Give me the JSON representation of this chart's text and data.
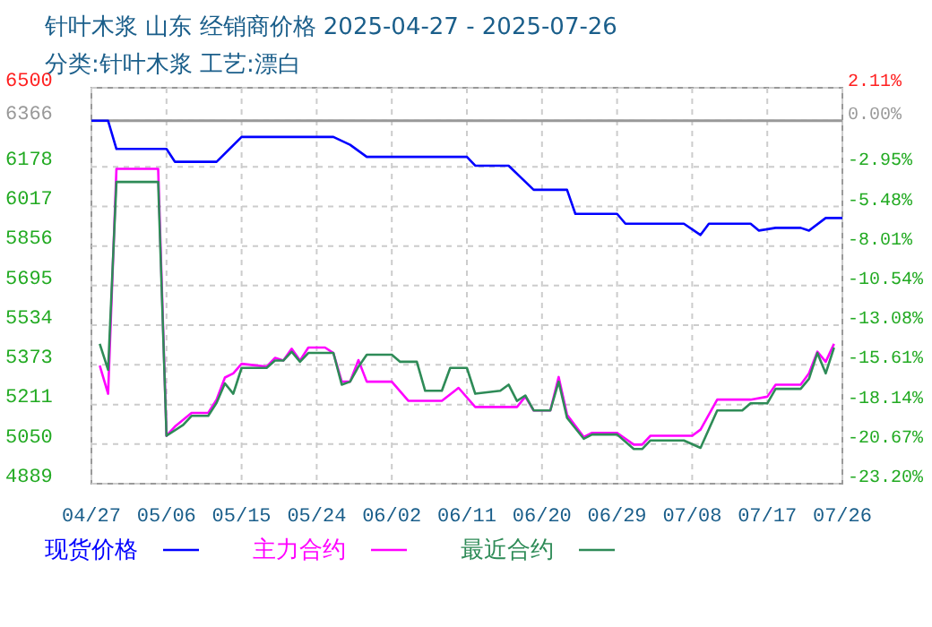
{
  "chart_data": {
    "type": "line",
    "title": "针叶木浆 山东 经销商价格 2025-04-27 - 2025-07-26",
    "subtitle": "分类:针叶木浆 工艺:漂白",
    "xlim": [
      "2025-04-27",
      "2025-07-26"
    ],
    "xticks": [
      {
        "value": "2025-04-27",
        "label": "04/27"
      },
      {
        "value": "2025-05-06",
        "label": "05/06"
      },
      {
        "value": "2025-05-15",
        "label": "05/15"
      },
      {
        "value": "2025-05-24",
        "label": "05/24"
      },
      {
        "value": "2025-06-02",
        "label": "06/02"
      },
      {
        "value": "2025-06-11",
        "label": "06/11"
      },
      {
        "value": "2025-06-20",
        "label": "06/20"
      },
      {
        "value": "2025-06-29",
        "label": "06/29"
      },
      {
        "value": "2025-07-08",
        "label": "07/08"
      },
      {
        "value": "2025-07-17",
        "label": "07/17"
      },
      {
        "value": "2025-07-26",
        "label": "07/26"
      }
    ],
    "ylim": [
      4889,
      6500
    ],
    "yticks": [
      4889,
      5050,
      5211,
      5373,
      5534,
      5695,
      5856,
      6017,
      6178,
      6366,
      6500
    ],
    "y2lim": [
      -23.2,
      2.11
    ],
    "y2ticks": [
      {
        "value": -23.2,
        "label": "-23.20%"
      },
      {
        "value": -20.67,
        "label": "-20.67%"
      },
      {
        "value": -18.14,
        "label": "-18.14%"
      },
      {
        "value": -15.61,
        "label": "-15.61%"
      },
      {
        "value": -13.08,
        "label": "-13.08%"
      },
      {
        "value": -10.54,
        "label": "-10.54%"
      },
      {
        "value": -8.01,
        "label": "-8.01%"
      },
      {
        "value": -5.48,
        "label": "-5.48%"
      },
      {
        "value": -2.95,
        "label": "-2.95%"
      },
      {
        "value": 0,
        "label": "0.00%"
      },
      {
        "value": 2.11,
        "label": "2.11%"
      }
    ],
    "ref_lines": [
      {
        "axis": "y",
        "value": 6366,
        "color": "#999999"
      }
    ],
    "grid": true,
    "legend": "bottom",
    "line_style": "solid",
    "marker": "none",
    "series": [
      {
        "name": "现货价格",
        "color": "#0000ff",
        "x": [
          "2025-04-27",
          "2025-04-29",
          "2025-04-30",
          "2025-05-06",
          "2025-05-07",
          "2025-05-12",
          "2025-05-15",
          "2025-05-26",
          "2025-05-28",
          "2025-05-30",
          "2025-06-11",
          "2025-06-12",
          "2025-06-16",
          "2025-06-19",
          "2025-06-23",
          "2025-06-24",
          "2025-06-29",
          "2025-06-30",
          "2025-07-07",
          "2025-07-09",
          "2025-07-10",
          "2025-07-15",
          "2025-07-16",
          "2025-07-18",
          "2025-07-21",
          "2025-07-22",
          "2025-07-24",
          "2025-07-26"
        ],
        "values": [
          6366,
          6366,
          6251,
          6251,
          6199,
          6199,
          6300,
          6300,
          6268,
          6219,
          6219,
          6183,
          6183,
          6085,
          6085,
          5987,
          5987,
          5947,
          5947,
          5901,
          5947,
          5947,
          5919,
          5930,
          5930,
          5919,
          5970,
          5970
        ]
      },
      {
        "name": "主力合约",
        "color": "#ff00ff",
        "x": [
          "2025-04-28",
          "2025-04-29",
          "2025-04-30",
          "2025-05-05",
          "2025-05-06",
          "2025-05-07",
          "2025-05-09",
          "2025-05-11",
          "2025-05-12",
          "2025-05-13",
          "2025-05-14",
          "2025-05-15",
          "2025-05-18",
          "2025-05-19",
          "2025-05-20",
          "2025-05-21",
          "2025-05-22",
          "2025-05-23",
          "2025-05-25",
          "2025-05-26",
          "2025-05-27",
          "2025-05-28",
          "2025-05-29",
          "2025-05-30",
          "2025-06-02",
          "2025-06-04",
          "2025-06-08",
          "2025-06-10",
          "2025-06-12",
          "2025-06-17",
          "2025-06-18",
          "2025-06-19",
          "2025-06-21",
          "2025-06-22",
          "2025-06-23",
          "2025-06-25",
          "2025-06-26",
          "2025-06-29",
          "2025-07-01",
          "2025-07-02",
          "2025-07-03",
          "2025-07-08",
          "2025-07-09",
          "2025-07-11",
          "2025-07-15",
          "2025-07-17",
          "2025-07-18",
          "2025-07-21",
          "2025-07-22",
          "2025-07-23",
          "2025-07-24",
          "2025-07-25"
        ],
        "values": [
          5370,
          5255,
          6170,
          6170,
          5084,
          5121,
          5177,
          5177,
          5231,
          5321,
          5338,
          5377,
          5365,
          5401,
          5390,
          5438,
          5390,
          5443,
          5443,
          5421,
          5304,
          5304,
          5392,
          5304,
          5304,
          5226,
          5226,
          5279,
          5201,
          5201,
          5243,
          5187,
          5187,
          5323,
          5170,
          5079,
          5096,
          5096,
          5048,
          5048,
          5084,
          5084,
          5109,
          5231,
          5231,
          5243,
          5292,
          5292,
          5338,
          5426,
          5385,
          5458
        ]
      },
      {
        "name": "最近合约",
        "color": "#2e8b57",
        "x": [
          "2025-04-28",
          "2025-04-29",
          "2025-04-30",
          "2025-05-05",
          "2025-05-06",
          "2025-05-08",
          "2025-05-09",
          "2025-05-11",
          "2025-05-12",
          "2025-05-13",
          "2025-05-14",
          "2025-05-15",
          "2025-05-18",
          "2025-05-19",
          "2025-05-20",
          "2025-05-21",
          "2025-05-22",
          "2025-05-23",
          "2025-05-26",
          "2025-05-27",
          "2025-05-28",
          "2025-05-29",
          "2025-05-30",
          "2025-06-02",
          "2025-06-03",
          "2025-06-05",
          "2025-06-06",
          "2025-06-08",
          "2025-06-09",
          "2025-06-11",
          "2025-06-12",
          "2025-06-15",
          "2025-06-16",
          "2025-06-17",
          "2025-06-18",
          "2025-06-19",
          "2025-06-21",
          "2025-06-22",
          "2025-06-23",
          "2025-06-25",
          "2025-06-26",
          "2025-06-29",
          "2025-07-01",
          "2025-07-02",
          "2025-07-03",
          "2025-07-07",
          "2025-07-09",
          "2025-07-11",
          "2025-07-14",
          "2025-07-15",
          "2025-07-17",
          "2025-07-18",
          "2025-07-21",
          "2025-07-22",
          "2025-07-23",
          "2025-07-24",
          "2025-07-25"
        ],
        "values": [
          5458,
          5352,
          6117,
          6117,
          5084,
          5128,
          5165,
          5165,
          5218,
          5297,
          5255,
          5360,
          5360,
          5390,
          5390,
          5426,
          5385,
          5421,
          5421,
          5292,
          5304,
          5365,
          5414,
          5414,
          5385,
          5385,
          5267,
          5267,
          5360,
          5360,
          5255,
          5267,
          5292,
          5226,
          5248,
          5187,
          5187,
          5304,
          5157,
          5072,
          5089,
          5089,
          5030,
          5030,
          5065,
          5065,
          5035,
          5187,
          5187,
          5216,
          5216,
          5275,
          5275,
          5316,
          5421,
          5338,
          5443
        ]
      }
    ]
  }
}
